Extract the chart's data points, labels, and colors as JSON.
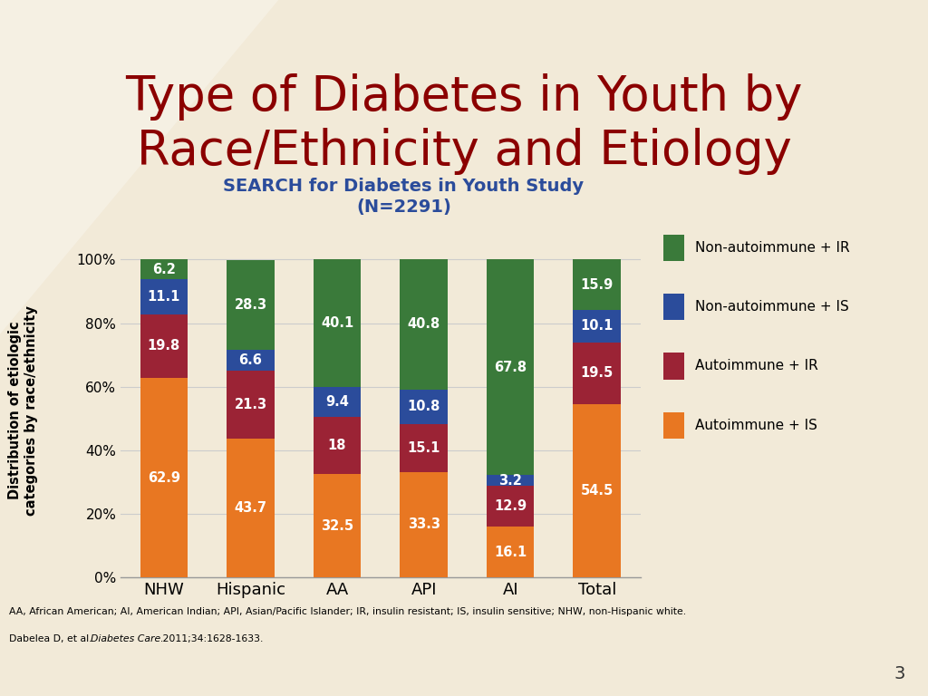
{
  "title": "Type of Diabetes in Youth by\nRace/Ethnicity and Etiology",
  "subtitle": "SEARCH for Diabetes in Youth Study\n(N=2291)",
  "categories": [
    "NHW",
    "Hispanic",
    "AA",
    "API",
    "AI",
    "Total"
  ],
  "series": [
    {
      "label": "Autoimmune + IS",
      "color": "#E87722",
      "values": [
        62.9,
        43.7,
        32.5,
        33.3,
        16.1,
        54.5
      ]
    },
    {
      "label": "Autoimmune + IR",
      "color": "#9B2335",
      "values": [
        19.8,
        21.3,
        18.0,
        15.1,
        12.9,
        19.5
      ]
    },
    {
      "label": "Non-autoimmune + IS",
      "color": "#2B4C9B",
      "values": [
        11.1,
        6.6,
        9.4,
        10.8,
        3.2,
        10.1
      ]
    },
    {
      "label": "Non-autoimmune + IR",
      "color": "#3A7A3A",
      "values": [
        6.2,
        28.3,
        40.1,
        40.8,
        67.8,
        15.9
      ]
    }
  ],
  "ylabel": "Distribution of etiologic\ncategories by race/ethnicity",
  "yticks": [
    0,
    20,
    40,
    60,
    80,
    100
  ],
  "ytick_labels": [
    "0%",
    "20%",
    "40%",
    "60%",
    "80%",
    "100%"
  ],
  "ylim": [
    0,
    105
  ],
  "background_color": "#F2EAD8",
  "title_color": "#8B0000",
  "subtitle_color": "#2B4C9B",
  "title_fontsize": 38,
  "subtitle_fontsize": 14,
  "ylabel_fontsize": 10.5,
  "bar_width": 0.55,
  "footnote1": "AA, African American; AI, American Indian; API, Asian/Pacific Islander; IR, insulin resistant; IS, insulin sensitive; NHW, non-Hispanic white.",
  "footnote2_plain": "Dabelea D, et al. ",
  "footnote2_italic": "Diabetes Care.",
  "footnote2_end": " 2011;34:1628-1633.",
  "page_number": "3"
}
